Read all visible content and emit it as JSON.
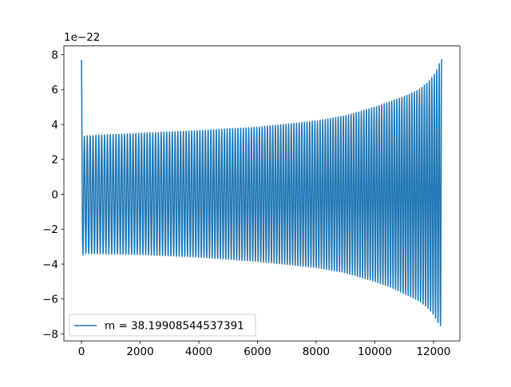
{
  "chart_data": {
    "type": "line",
    "title": "",
    "xlabel": "",
    "ylabel": "",
    "y_offset_text": "1e−22",
    "xlim": [
      -600,
      12900
    ],
    "ylim": [
      -8.4,
      8.5
    ],
    "x_ticks": [
      0,
      2000,
      4000,
      6000,
      8000,
      10000,
      12000
    ],
    "x_tick_labels": [
      "0",
      "2000",
      "4000",
      "6000",
      "8000",
      "10000",
      "12000"
    ],
    "y_ticks": [
      -8,
      -6,
      -4,
      -2,
      0,
      2,
      4,
      6,
      8
    ],
    "y_tick_labels": [
      "−8",
      "−6",
      "−4",
      "−2",
      "0",
      "2",
      "4",
      "6",
      "8"
    ],
    "grid": false,
    "legend_placement": "lower-left",
    "series": [
      {
        "name": "m = 38.19908544537391",
        "color": "#1f77b4",
        "x_start": 0,
        "x_end": 12280,
        "cycles": 135,
        "envelope_x": [
          0,
          60,
          150,
          2000,
          4000,
          6000,
          8000,
          9000,
          10000,
          10500,
          11000,
          11500,
          11800,
          12000,
          12100,
          12200,
          12280
        ],
        "envelope_upper": [
          7.7,
          3.3,
          3.35,
          3.5,
          3.65,
          3.85,
          4.2,
          4.5,
          5.0,
          5.3,
          5.6,
          6.0,
          6.4,
          6.8,
          7.1,
          7.5,
          7.75
        ],
        "envelope_lower": [
          -3.8,
          -3.4,
          -3.4,
          -3.45,
          -3.6,
          -3.85,
          -4.2,
          -4.5,
          -5.0,
          -5.3,
          -5.7,
          -6.1,
          -6.5,
          -6.9,
          -7.2,
          -7.5,
          -7.6
        ]
      }
    ]
  }
}
